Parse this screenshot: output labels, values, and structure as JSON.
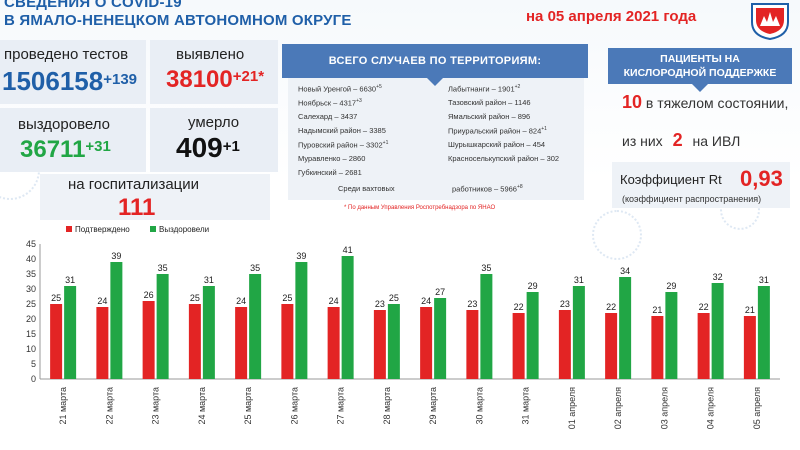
{
  "header": {
    "title_line1": "СВЕДЕНИЯ О COVID-19",
    "title_line2": "В ЯМАЛО-НЕНЕЦКОМ АВТОНОМНОМ ОКРУГЕ",
    "date": "на 05 апреля 2021 года"
  },
  "stats": {
    "tests": {
      "label": "проведено тестов",
      "value": "1506158",
      "delta": "+139"
    },
    "detected": {
      "label": "выявлено",
      "value": "38100",
      "delta": "+21*"
    },
    "recovered": {
      "label": "выздоровело",
      "value": "36711",
      "delta": "+31"
    },
    "died": {
      "label": "умерло",
      "value": "409",
      "delta": "+1"
    },
    "hospital": {
      "label": "на госпитализации",
      "value": "111"
    }
  },
  "territories": {
    "title": "ВСЕГО СЛУЧАЕВ ПО ТЕРРИТОРИЯМ:",
    "left": [
      {
        "name": "Новый Уренгой – 6630",
        "delta": "+5"
      },
      {
        "name": "Ноябрьск – 4317",
        "delta": "+3"
      },
      {
        "name": "Салехард – 3437",
        "delta": ""
      },
      {
        "name": "Надымский район – 3385",
        "delta": ""
      },
      {
        "name": "Пуровский район – 3302",
        "delta": "+1"
      },
      {
        "name": "Муравленко – 2860",
        "delta": ""
      },
      {
        "name": "Губкинский – 2681",
        "delta": ""
      }
    ],
    "right": [
      {
        "name": "Лабытнанги – 1901",
        "delta": "+2"
      },
      {
        "name": "Тазовский район – 1146",
        "delta": ""
      },
      {
        "name": "Ямальский район – 896",
        "delta": ""
      },
      {
        "name": "Приуральский район – 824",
        "delta": "+1"
      },
      {
        "name": "Шурышкарский район – 454",
        "delta": ""
      },
      {
        "name": "Красноселькупский район – 302",
        "delta": ""
      }
    ],
    "shift_label": "Среди вахтовых",
    "shift_value": "работников – 5966",
    "shift_delta": "+8",
    "note": "* По данным Управления Роспотребнадзора по ЯНАО"
  },
  "oxygen": {
    "title_line1": "ПАЦИЕНТЫ НА",
    "title_line2": "КИСЛОРОДНОЙ ПОДДЕРЖКЕ",
    "severe_num": "10",
    "severe_text": "в тяжелом состоянии,",
    "ivl_pre": "из них",
    "ivl_num": "2",
    "ivl_post": "на ИВЛ",
    "rt_label": "Коэффициент Rt",
    "rt_value": "0,93",
    "rt_sub": "(коэффициент распространения)"
  },
  "colors": {
    "red": "#e32424",
    "green": "#21a645",
    "blue": "#4b79b8",
    "title": "#1f5fa8"
  },
  "chart_data": {
    "type": "bar",
    "categories": [
      "21 марта",
      "22 марта",
      "23 марта",
      "24 марта",
      "25 марта",
      "26 марта",
      "27 марта",
      "28 марта",
      "29 марта",
      "30 марта",
      "31 марта",
      "01 апреля",
      "02 апреля",
      "03 апреля",
      "04 апреля",
      "05 апреля"
    ],
    "series": [
      {
        "name": "Подтверждено",
        "color": "#e32424",
        "values": [
          25,
          24,
          26,
          25,
          24,
          25,
          24,
          23,
          24,
          23,
          22,
          23,
          22,
          21,
          22,
          21
        ]
      },
      {
        "name": "Выздоровели",
        "color": "#21a645",
        "values": [
          31,
          39,
          35,
          31,
          35,
          39,
          41,
          25,
          27,
          35,
          29,
          31,
          34,
          29,
          32,
          31
        ]
      }
    ],
    "ylim": [
      0,
      45
    ],
    "yticks": [
      0,
      5,
      10,
      15,
      20,
      25,
      30,
      35,
      40,
      45
    ],
    "grid": false,
    "legend": "top-left"
  }
}
